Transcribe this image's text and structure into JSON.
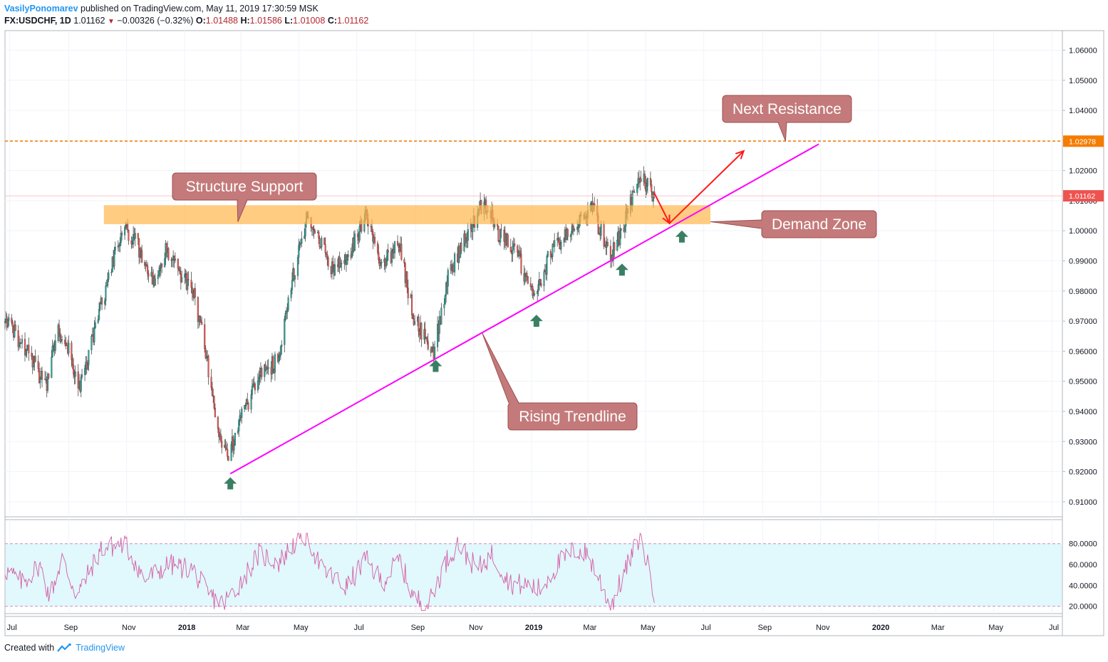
{
  "header": {
    "author": "VasilyPonomarev",
    "published": " published on TradingView.com, May 11, 2019 17:30:59 MSK",
    "symbol": "FX:USDCHF, 1D",
    "last": "1.01162",
    "change": "−0.00326 (−0.32%)",
    "o_label": "O:",
    "o_value": "1.01488",
    "h_label": "H:",
    "h_value": "1.01586",
    "l_label": "L:",
    "l_value": "1.01008",
    "c_label": "C:",
    "c_value": "1.01162"
  },
  "footer": {
    "created": "Created with",
    "brand": "TradingView"
  },
  "colors": {
    "up": "#26a69a",
    "down": "#ef5350",
    "trendline": "#ff00ff",
    "zone": "#ffb74d",
    "resistance": "#f57c00",
    "callout": "#c47a7a",
    "arrow_up": "#3b7f63",
    "rsi": "#d45fa5",
    "rsi_band": "#e1f8fd"
  },
  "chart_data": {
    "type": "candlestick",
    "symbol": "FX:USDCHF",
    "timeframe": "1D",
    "price_ylim": [
      0.905,
      1.0665
    ],
    "price_ticks": [
      "1.06000",
      "1.05000",
      "1.04000",
      "1.03000",
      "1.02000",
      "1.01000",
      "1.00000",
      "0.99000",
      "0.98000",
      "0.97000",
      "0.96000",
      "0.95000",
      "0.94000",
      "0.93000",
      "0.92000",
      "0.91000"
    ],
    "time_ticks": [
      "Jul",
      "Sep",
      "Nov",
      "2018",
      "Mar",
      "May",
      "Jul",
      "Sep",
      "Nov",
      "2019",
      "Mar",
      "May",
      "Jul",
      "Sep",
      "Nov",
      "2020",
      "Mar",
      "May",
      "Jul"
    ],
    "price_path": [
      [
        "2017-06-26",
        0.97
      ],
      [
        "2017-07-20",
        0.96
      ],
      [
        "2017-08-08",
        0.948
      ],
      [
        "2017-08-20",
        0.967
      ],
      [
        "2017-09-05",
        0.958
      ],
      [
        "2017-09-10",
        0.945
      ],
      [
        "2017-10-05",
        0.975
      ],
      [
        "2017-10-28",
        1.002
      ],
      [
        "2017-11-10",
        0.997
      ],
      [
        "2017-11-28",
        0.983
      ],
      [
        "2017-12-12",
        0.993
      ],
      [
        "2018-01-10",
        0.98
      ],
      [
        "2018-01-22",
        0.962
      ],
      [
        "2018-02-05",
        0.933
      ],
      [
        "2018-02-16",
        0.925
      ],
      [
        "2018-02-26",
        0.935
      ],
      [
        "2018-03-20",
        0.952
      ],
      [
        "2018-04-10",
        0.957
      ],
      [
        "2018-04-25",
        0.985
      ],
      [
        "2018-05-10",
        1.005
      ],
      [
        "2018-06-05",
        0.987
      ],
      [
        "2018-06-25",
        0.993
      ],
      [
        "2018-07-10",
        1.005
      ],
      [
        "2018-07-25",
        0.989
      ],
      [
        "2018-08-15",
        0.995
      ],
      [
        "2018-08-30",
        0.971
      ],
      [
        "2018-09-20",
        0.96
      ],
      [
        "2018-10-05",
        0.985
      ],
      [
        "2018-10-25",
        0.998
      ],
      [
        "2018-11-12",
        1.01
      ],
      [
        "2018-11-28",
        0.998
      ],
      [
        "2018-12-15",
        0.994
      ],
      [
        "2018-12-28",
        0.982
      ],
      [
        "2019-01-03",
        0.977
      ],
      [
        "2019-01-20",
        0.992
      ],
      [
        "2019-02-05",
        0.998
      ],
      [
        "2019-02-20",
        1.004
      ],
      [
        "2019-03-05",
        1.008
      ],
      [
        "2019-03-20",
        0.995
      ],
      [
        "2019-03-25",
        0.991
      ],
      [
        "2019-04-08",
        1.002
      ],
      [
        "2019-04-25",
        1.019
      ],
      [
        "2019-05-10",
        1.0116
      ]
    ],
    "last_price": 1.01162,
    "resistance_level": 1.02978,
    "demand_zone": {
      "from": "2017-10-08",
      "to": "2019-07-08",
      "low": 1.0022,
      "high": 1.0085
    },
    "trendline": {
      "from": [
        "2018-02-18",
        0.9193
      ],
      "to": [
        "2019-10-30",
        1.0288
      ]
    },
    "projection_arrows": [
      {
        "from": [
          "2019-05-10",
          1.0125
        ],
        "to": [
          "2019-05-26",
          1.0025
        ]
      },
      {
        "from": [
          "2019-05-26",
          1.0025
        ],
        "to": [
          "2019-08-12",
          1.0265
        ]
      }
    ],
    "bounce_markers": [
      [
        "2018-02-18",
        0.916
      ],
      [
        "2018-09-22",
        0.955
      ],
      [
        "2019-01-06",
        0.97
      ],
      [
        "2019-04-06",
        0.987
      ],
      [
        "2019-06-08",
        0.998
      ]
    ],
    "callouts": [
      {
        "text": "Next Resistance",
        "anchor": [
          "2019-09-25",
          1.0298
        ]
      },
      {
        "text": "Structure Support",
        "anchor": [
          "2018-02-26",
          1.003
        ]
      },
      {
        "text": "Demand Zone",
        "anchor": [
          "2019-07-08",
          1.003
        ]
      },
      {
        "text": "Rising Trendline",
        "anchor": [
          "2018-11-10",
          0.966
        ]
      }
    ],
    "rsi": {
      "ylim": [
        13,
        103
      ],
      "ticks": [
        "80.0000",
        "60.0000",
        "40.0000",
        "20.0000"
      ],
      "overbought": 80,
      "oversold": 20,
      "path": [
        [
          "2017-06-26",
          55
        ],
        [
          "2017-07-15",
          42
        ],
        [
          "2017-08-01",
          60
        ],
        [
          "2017-08-12",
          30
        ],
        [
          "2017-08-25",
          65
        ],
        [
          "2017-09-10",
          30
        ],
        [
          "2017-10-05",
          75
        ],
        [
          "2017-10-30",
          80
        ],
        [
          "2017-11-20",
          45
        ],
        [
          "2017-12-15",
          60
        ],
        [
          "2018-01-10",
          55
        ],
        [
          "2018-01-25",
          32
        ],
        [
          "2018-02-10",
          22
        ],
        [
          "2018-02-25",
          38
        ],
        [
          "2018-03-20",
          70
        ],
        [
          "2018-04-10",
          62
        ],
        [
          "2018-04-28",
          82
        ],
        [
          "2018-05-10",
          88
        ],
        [
          "2018-05-25",
          55
        ],
        [
          "2018-06-20",
          38
        ],
        [
          "2018-07-10",
          65
        ],
        [
          "2018-07-28",
          43
        ],
        [
          "2018-08-15",
          65
        ],
        [
          "2018-08-30",
          28
        ],
        [
          "2018-09-15",
          22
        ],
        [
          "2018-10-01",
          60
        ],
        [
          "2018-10-15",
          80
        ],
        [
          "2018-11-05",
          55
        ],
        [
          "2018-11-20",
          70
        ],
        [
          "2018-12-10",
          42
        ],
        [
          "2018-12-28",
          40
        ],
        [
          "2019-01-10",
          36
        ],
        [
          "2019-01-28",
          60
        ],
        [
          "2019-02-15",
          74
        ],
        [
          "2019-03-01",
          70
        ],
        [
          "2019-03-15",
          42
        ],
        [
          "2019-03-25",
          20
        ],
        [
          "2019-04-10",
          55
        ],
        [
          "2019-04-25",
          88
        ],
        [
          "2019-05-10",
          34
        ]
      ]
    }
  }
}
